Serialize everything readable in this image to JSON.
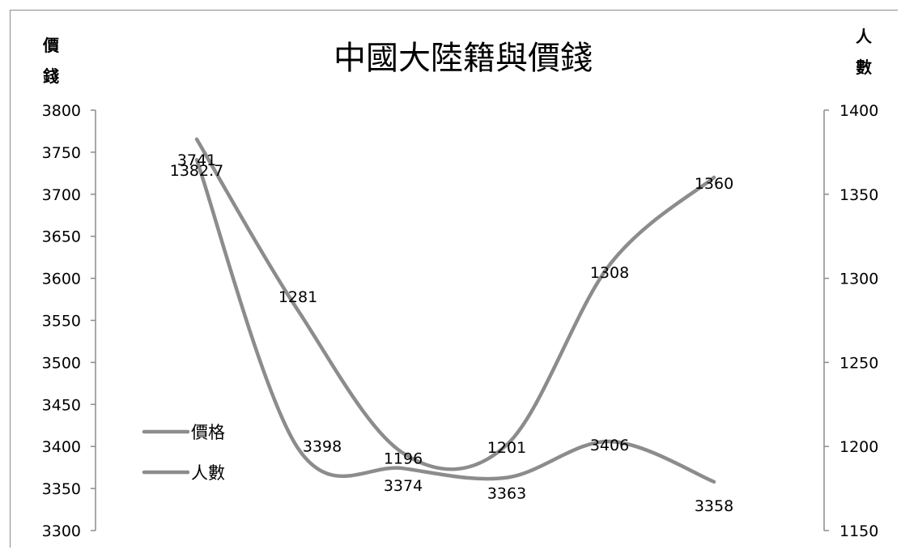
{
  "chart_data": {
    "type": "line",
    "title": "中國大陸籍與價錢",
    "ylabel": "價錢",
    "y2label": "人數",
    "ylim": [
      3300,
      3800
    ],
    "y2lim": [
      1150,
      1400
    ],
    "yticks": [
      "3800",
      "3750",
      "3700",
      "3650",
      "3600",
      "3550",
      "3500",
      "3450",
      "3400",
      "3350",
      "3300"
    ],
    "y2ticks": [
      "1400",
      "1350",
      "1300",
      "1250",
      "1200",
      "1150"
    ],
    "grid": false,
    "legend_position": "left",
    "x": [
      1,
      2,
      3,
      4,
      5,
      6
    ],
    "series": [
      {
        "name": "價格",
        "axis": "left",
        "values": [
          3741,
          3398,
          3374,
          3363,
          3406,
          3358
        ],
        "labels": [
          "3741",
          "3398",
          "3374",
          "3363",
          "3406",
          "3358"
        ]
      },
      {
        "name": "人數",
        "axis": "right",
        "values": [
          1382.7,
          1281,
          1196,
          1201,
          1308,
          1360
        ],
        "labels": [
          "1382.7",
          "1281",
          "1196",
          "1201",
          "1308",
          "1360"
        ]
      }
    ],
    "line_color": "#8c8c8c"
  }
}
